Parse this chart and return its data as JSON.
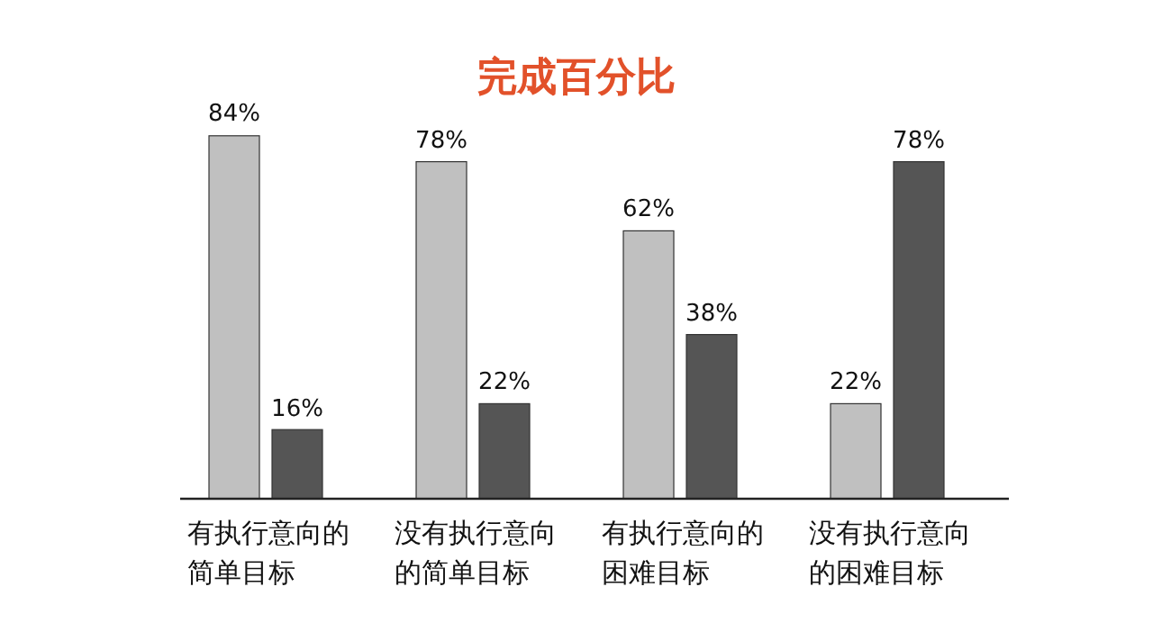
{
  "chart_data": {
    "type": "bar",
    "title": "完成百分比",
    "categories": [
      "有执行意向的简单目标",
      "没有执行意向的简单目标",
      "有执行意向的困难目标",
      "没有执行意向的困难目标"
    ],
    "series": [
      {
        "color": "#c0c0c0",
        "values": [
          84,
          78,
          62,
          22
        ],
        "value_labels": [
          "84%",
          "78%",
          "62%",
          "22%"
        ]
      },
      {
        "color": "#555555",
        "values": [
          16,
          22,
          38,
          78
        ],
        "value_labels": [
          "16%",
          "22%",
          "38%",
          "78%"
        ]
      }
    ]
  }
}
